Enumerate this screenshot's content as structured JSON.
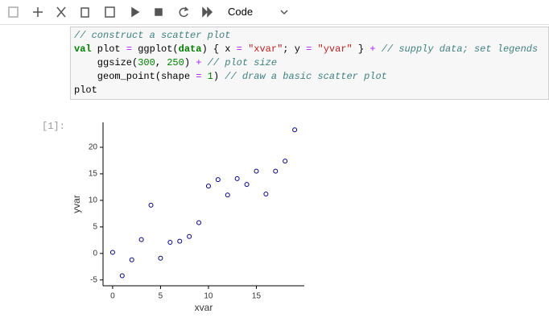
{
  "toolbar": {
    "cell_type": "Code"
  },
  "code_cell": {
    "lines": [
      [
        {
          "text": "// construct a scatter plot",
          "color": "#408080",
          "italic": true
        }
      ],
      [
        {
          "text": "val",
          "color": "#008000",
          "bold": true
        },
        {
          "text": " plot ",
          "color": "#000000"
        },
        {
          "text": "=",
          "color": "#AA22FF"
        },
        {
          "text": " ggplot(",
          "color": "#000000"
        },
        {
          "text": "data",
          "color": "#008000",
          "bold": true
        },
        {
          "text": ") { x ",
          "color": "#000000"
        },
        {
          "text": "=",
          "color": "#AA22FF"
        },
        {
          "text": " ",
          "color": "#000000"
        },
        {
          "text": "\"xvar\"",
          "color": "#BA2121"
        },
        {
          "text": "; y ",
          "color": "#000000"
        },
        {
          "text": "=",
          "color": "#AA22FF"
        },
        {
          "text": " ",
          "color": "#000000"
        },
        {
          "text": "\"yvar\"",
          "color": "#BA2121"
        },
        {
          "text": " } ",
          "color": "#000000"
        },
        {
          "text": "+",
          "color": "#AA22FF"
        },
        {
          "text": " // supply data; set legends",
          "color": "#408080",
          "italic": true
        }
      ],
      [
        {
          "text": "    ggsize(",
          "color": "#000000"
        },
        {
          "text": "300",
          "color": "#008000"
        },
        {
          "text": ", ",
          "color": "#000000"
        },
        {
          "text": "250",
          "color": "#008000"
        },
        {
          "text": ") ",
          "color": "#000000"
        },
        {
          "text": "+",
          "color": "#AA22FF"
        },
        {
          "text": " // plot size",
          "color": "#408080",
          "italic": true
        }
      ],
      [
        {
          "text": "    geom_point(shape ",
          "color": "#000000"
        },
        {
          "text": "=",
          "color": "#AA22FF"
        },
        {
          "text": " ",
          "color": "#000000"
        },
        {
          "text": "1",
          "color": "#008000"
        },
        {
          "text": ") ",
          "color": "#000000"
        },
        {
          "text": "// draw a basic scatter plot",
          "color": "#408080",
          "italic": true
        }
      ],
      [
        {
          "text": "plot",
          "color": "#000000"
        }
      ]
    ]
  },
  "output": {
    "prompt": "[1]:"
  },
  "chart_data": {
    "type": "scatter",
    "x_label": "xvar",
    "y_label": "yvar",
    "color": "#000080",
    "x": [
      0,
      1,
      2,
      3,
      4,
      5,
      6,
      7,
      8,
      9,
      10,
      11,
      12,
      13,
      14,
      15,
      16,
      17,
      18,
      19
    ],
    "y": [
      0.2,
      -4.2,
      -1.2,
      2.6,
      9.1,
      -0.9,
      2.1,
      2.3,
      3.2,
      5.8,
      12.7,
      13.9,
      11.0,
      14.1,
      13.0,
      15.5,
      11.2,
      15.5,
      17.4,
      23.3
    ],
    "xlim": [
      -1,
      20
    ],
    "ylim": [
      -6.1,
      24.7
    ],
    "xticks": [
      0,
      5,
      10,
      15
    ],
    "yticks": [
      -5,
      0,
      5,
      10,
      15,
      20
    ],
    "grid": false
  }
}
